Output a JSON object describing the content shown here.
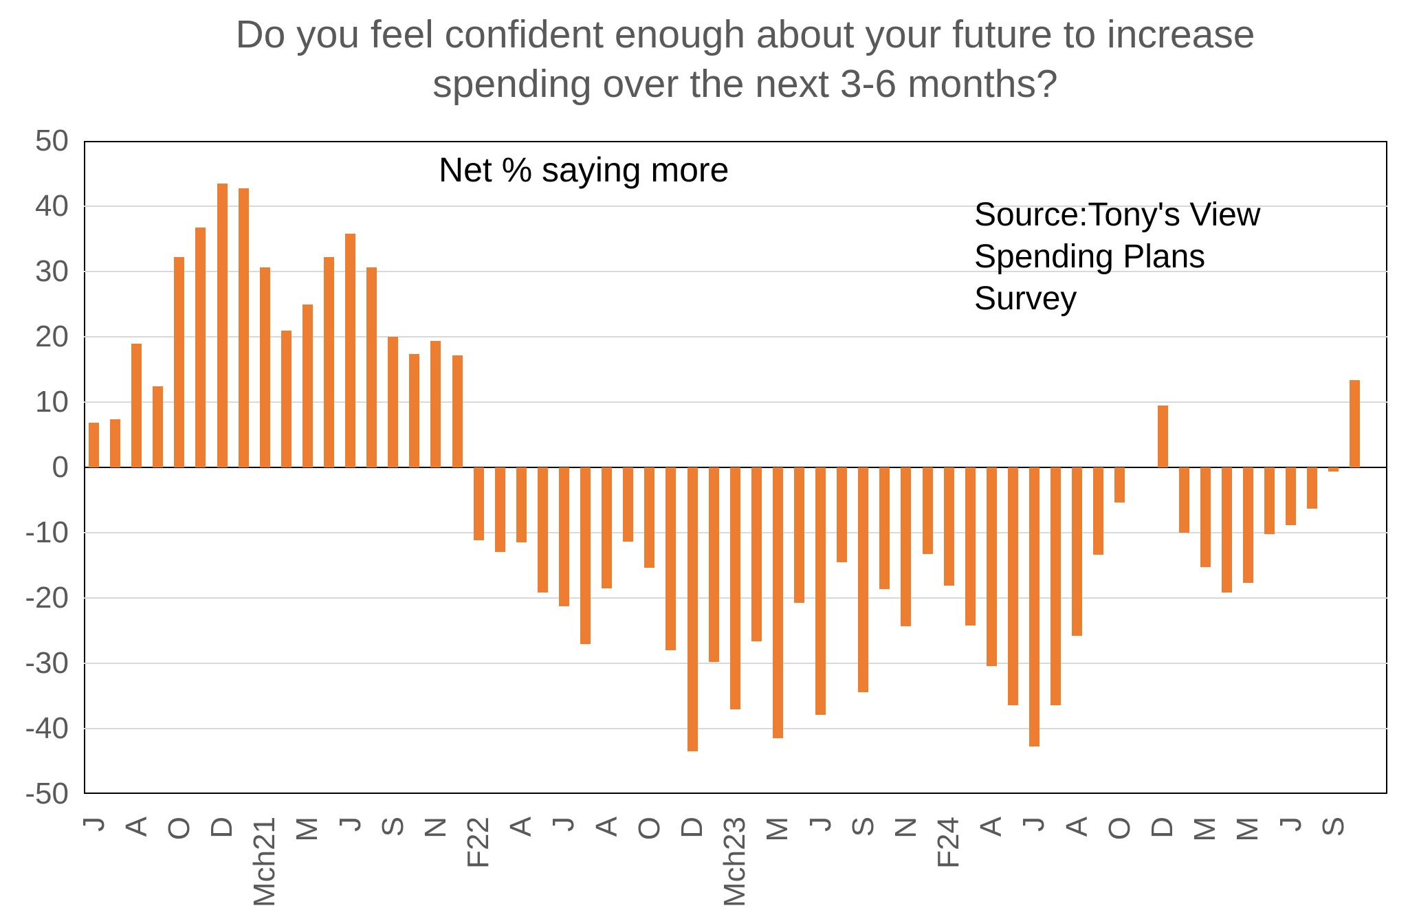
{
  "title": "Do you feel confident enough about your future to increase\nspending over the next 3-6 months?",
  "annotation": "Net % saying more",
  "source": "Source:Tony's View\nSpending Plans\nSurvey",
  "colors": {
    "bar": "#ED7D31",
    "title_text": "#595959",
    "axis_text": "#595959",
    "annotation_text": "#000000",
    "source_text": "#000000",
    "gridline": "#D9D9D9",
    "zero_line": "#000000",
    "frame": "#000000",
    "background": "#FFFFFF"
  },
  "chart_data": {
    "type": "bar",
    "title": "Do you feel confident enough about your future to increase spending over the next 3-6 months?",
    "annotation": "Net % saying more",
    "source": "Source:Tony's View Spending Plans Survey",
    "xlabel": "",
    "ylabel": "Net % saying more",
    "ylim": [
      -50,
      50
    ],
    "yticks": [
      50,
      40,
      30,
      20,
      10,
      0,
      -10,
      -20,
      -30,
      -40,
      -50
    ],
    "grid": true,
    "legend": false,
    "bar_spacing_note": "60 monthly bars; only every second bar is labelled on the x-axis",
    "categories": [
      "J",
      "",
      "A",
      "",
      "O",
      "",
      "D",
      "",
      "Mch21",
      "",
      "M",
      "",
      "J",
      "",
      "S",
      "",
      "N",
      "",
      "F22",
      "",
      "A",
      "",
      "J",
      "",
      "A",
      "",
      "O",
      "",
      "D",
      "",
      "Mch23",
      "",
      "M",
      "",
      "J",
      "",
      "S",
      "",
      "N",
      "",
      "F24",
      "",
      "A",
      "",
      "J",
      "",
      "A",
      "",
      "O",
      "",
      "D",
      "",
      "M",
      "",
      "M",
      "",
      "J",
      "",
      "S",
      ""
    ],
    "values": [
      6.8,
      7.4,
      19.0,
      12.4,
      32.2,
      36.7,
      43.5,
      42.7,
      30.6,
      21.0,
      25.0,
      32.2,
      35.8,
      30.6,
      20.0,
      17.4,
      19.4,
      17.2,
      -11.2,
      -12.9,
      -11.5,
      -19.2,
      -21.3,
      -27.0,
      -18.5,
      -11.4,
      -15.4,
      -28.0,
      -43.5,
      -29.8,
      -37.1,
      -26.6,
      -41.5,
      -20.7,
      -37.9,
      -14.5,
      -34.4,
      -18.6,
      -24.3,
      -13.3,
      -18.1,
      -24.2,
      -30.4,
      -36.4,
      -42.7,
      -36.4,
      -25.8,
      -13.4,
      -5.4,
      0,
      9.5,
      -10.0,
      -15.3,
      -19.2,
      -17.7,
      -10.2,
      -8.8,
      -6.3,
      -0.6,
      13.4
    ]
  }
}
